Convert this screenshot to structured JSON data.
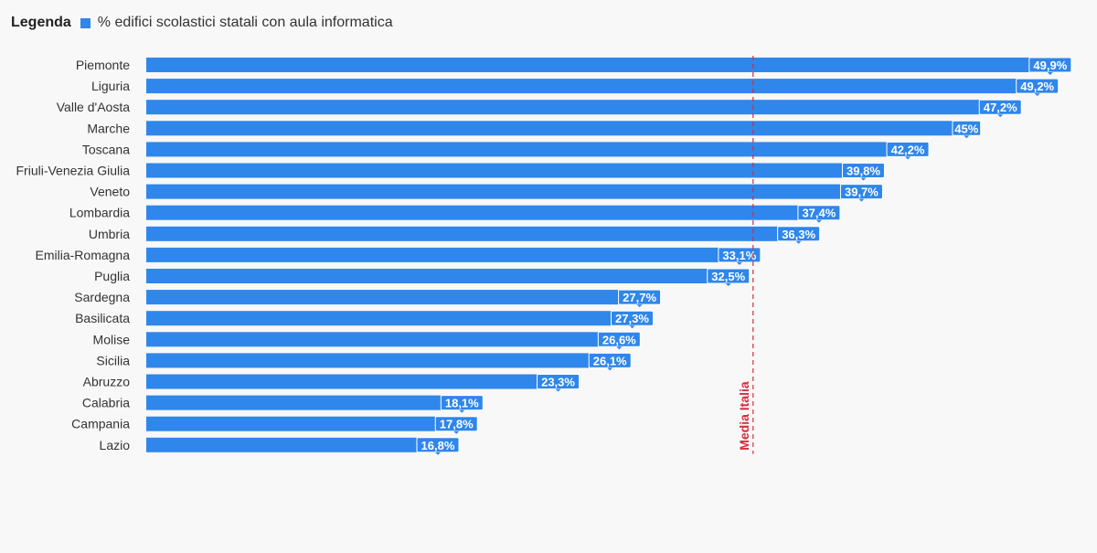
{
  "legend": {
    "title": "Legenda",
    "series_label": "% edifici scolastici statali con aula informatica"
  },
  "reference_line": {
    "label": "Media Italia",
    "value": 32.8,
    "color": "#d62d3e"
  },
  "colors": {
    "bar": "#2f86eb",
    "label_box": "#2f86eb",
    "label_text": "#ffffff"
  },
  "chart_data": {
    "type": "bar",
    "orientation": "horizontal",
    "title": "",
    "xlabel": "",
    "ylabel": "",
    "xlim": [
      0,
      50.5
    ],
    "categories": [
      "Piemonte",
      "Liguria",
      "Valle d'Aosta",
      "Marche",
      "Toscana",
      "Friuli-Venezia Giulia",
      "Veneto",
      "Lombardia",
      "Umbria",
      "Emilia-Romagna",
      "Puglia",
      "Sardegna",
      "Basilicata",
      "Molise",
      "Sicilia",
      "Abruzzo",
      "Calabria",
      "Campania",
      "Lazio"
    ],
    "series": [
      {
        "name": "% edifici scolastici statali con aula informatica",
        "values": [
          49.9,
          49.2,
          47.2,
          45,
          42.2,
          39.8,
          39.7,
          37.4,
          36.3,
          33.1,
          32.5,
          27.7,
          27.3,
          26.6,
          26.1,
          23.3,
          18.1,
          17.8,
          16.8
        ],
        "labels": [
          "49,9%",
          "49,2%",
          "47,2%",
          "45%",
          "42,2%",
          "39,8%",
          "39,7%",
          "37,4%",
          "36,3%",
          "33,1%",
          "32,5%",
          "27,7%",
          "27,3%",
          "26,6%",
          "26,1%",
          "23,3%",
          "18,1%",
          "17,8%",
          "16,8%"
        ]
      }
    ],
    "grid": false,
    "legend_position": "top-left"
  }
}
